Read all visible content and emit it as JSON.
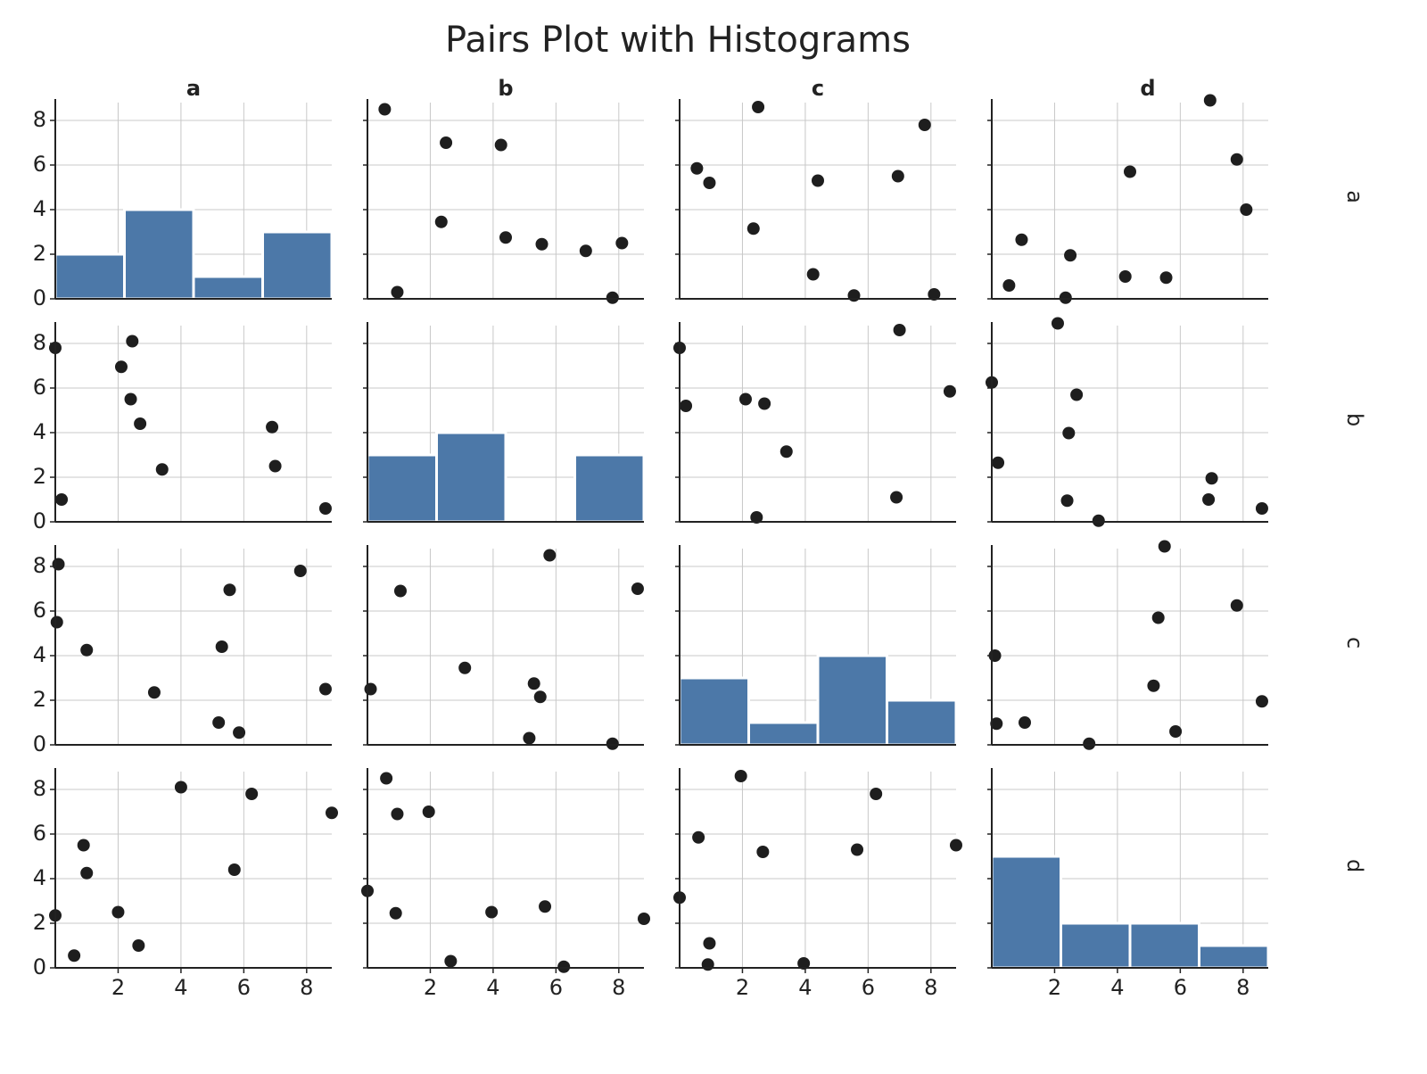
{
  "chart_data": {
    "type": "scatter",
    "title": "Pairs Plot with Histograms",
    "variables": [
      "a",
      "b",
      "c",
      "d"
    ],
    "axis_range": [
      0,
      8.8
    ],
    "ticks": [
      2,
      4,
      6,
      8
    ],
    "ticks_y": [
      0,
      2,
      4,
      6,
      8
    ],
    "grid": true,
    "scatter": {
      "0_1": [
        [
          0.55,
          8.5
        ],
        [
          0.95,
          0.3
        ],
        [
          2.35,
          3.45
        ],
        [
          2.5,
          7.0
        ],
        [
          4.25,
          6.9
        ],
        [
          4.4,
          2.75
        ],
        [
          5.55,
          2.45
        ],
        [
          6.95,
          2.15
        ],
        [
          7.8,
          0.05
        ],
        [
          8.1,
          2.5
        ]
      ],
      "0_2": [
        [
          0.55,
          5.85
        ],
        [
          0.95,
          5.2
        ],
        [
          2.35,
          3.15
        ],
        [
          2.5,
          8.6
        ],
        [
          4.25,
          1.1
        ],
        [
          4.4,
          5.3
        ],
        [
          5.55,
          0.15
        ],
        [
          6.95,
          5.5
        ],
        [
          7.8,
          7.8
        ],
        [
          8.1,
          0.2
        ]
      ],
      "0_3": [
        [
          0.55,
          0.6
        ],
        [
          0.95,
          2.65
        ],
        [
          2.35,
          0.05
        ],
        [
          2.5,
          1.95
        ],
        [
          4.25,
          1.0
        ],
        [
          4.4,
          5.7
        ],
        [
          5.55,
          0.95
        ],
        [
          6.95,
          8.9
        ],
        [
          7.8,
          6.25
        ],
        [
          8.1,
          4.0
        ]
      ],
      "1_0": [
        [
          0.0,
          7.8
        ],
        [
          0.2,
          1.0
        ],
        [
          2.1,
          6.95
        ],
        [
          2.4,
          5.5
        ],
        [
          2.45,
          8.1
        ],
        [
          2.7,
          4.4
        ],
        [
          3.4,
          2.35
        ],
        [
          6.9,
          4.25
        ],
        [
          7.0,
          2.5
        ],
        [
          8.6,
          0.6
        ]
      ],
      "1_2": [
        [
          0.0,
          7.8
        ],
        [
          0.2,
          5.2
        ],
        [
          2.1,
          5.5
        ],
        [
          2.7,
          5.3
        ],
        [
          3.4,
          3.15
        ],
        [
          2.45,
          0.2
        ],
        [
          6.9,
          1.1
        ],
        [
          7.0,
          8.6
        ],
        [
          8.6,
          5.85
        ]
      ],
      "1_3": [
        [
          0.0,
          6.25
        ],
        [
          0.2,
          2.65
        ],
        [
          2.1,
          8.9
        ],
        [
          2.4,
          0.95
        ],
        [
          2.45,
          3.98
        ],
        [
          2.7,
          5.7
        ],
        [
          3.4,
          0.05
        ],
        [
          6.9,
          1.0
        ],
        [
          7.0,
          1.95
        ],
        [
          8.6,
          0.6
        ]
      ],
      "2_0": [
        [
          0.1,
          8.1
        ],
        [
          0.05,
          5.5
        ],
        [
          1.0,
          4.25
        ],
        [
          3.15,
          2.35
        ],
        [
          5.2,
          1.0
        ],
        [
          5.3,
          4.4
        ],
        [
          5.55,
          6.95
        ],
        [
          5.85,
          0.55
        ],
        [
          7.8,
          7.8
        ],
        [
          8.6,
          2.5
        ]
      ],
      "2_1": [
        [
          0.1,
          2.5
        ],
        [
          1.05,
          6.9
        ],
        [
          3.1,
          3.45
        ],
        [
          5.15,
          0.3
        ],
        [
          5.3,
          2.75
        ],
        [
          5.5,
          2.15
        ],
        [
          5.8,
          8.5
        ],
        [
          7.8,
          0.05
        ],
        [
          8.6,
          7.0
        ]
      ],
      "2_3": [
        [
          0.1,
          4.0
        ],
        [
          0.15,
          0.95
        ],
        [
          1.05,
          1.0
        ],
        [
          3.1,
          0.05
        ],
        [
          5.15,
          2.65
        ],
        [
          5.3,
          5.7
        ],
        [
          5.5,
          8.9
        ],
        [
          5.85,
          0.6
        ],
        [
          7.8,
          6.25
        ],
        [
          8.6,
          1.95
        ]
      ],
      "3_0": [
        [
          0.0,
          2.35
        ],
        [
          0.6,
          0.55
        ],
        [
          0.9,
          5.5
        ],
        [
          1.0,
          4.25
        ],
        [
          2.0,
          2.5
        ],
        [
          2.65,
          1.0
        ],
        [
          4.0,
          8.1
        ],
        [
          5.7,
          4.4
        ],
        [
          6.25,
          7.8
        ],
        [
          8.8,
          6.95
        ]
      ],
      "3_1": [
        [
          0.0,
          3.45
        ],
        [
          0.6,
          8.5
        ],
        [
          0.9,
          2.45
        ],
        [
          0.95,
          6.9
        ],
        [
          1.95,
          7.0
        ],
        [
          2.65,
          0.3
        ],
        [
          3.95,
          2.5
        ],
        [
          5.65,
          2.75
        ],
        [
          6.25,
          0.05
        ],
        [
          8.8,
          2.2
        ]
      ],
      "3_2": [
        [
          0.0,
          3.15
        ],
        [
          0.6,
          5.85
        ],
        [
          0.9,
          0.15
        ],
        [
          0.95,
          1.1
        ],
        [
          1.95,
          8.6
        ],
        [
          2.65,
          5.2
        ],
        [
          3.95,
          0.2
        ],
        [
          5.65,
          5.3
        ],
        [
          6.25,
          7.8
        ],
        [
          8.8,
          5.5
        ]
      ]
    },
    "histograms": {
      "a": [
        {
          "from": 0.0,
          "to": 2.2,
          "count": 2
        },
        {
          "from": 2.2,
          "to": 4.4,
          "count": 4
        },
        {
          "from": 4.4,
          "to": 6.6,
          "count": 1
        },
        {
          "from": 6.6,
          "to": 8.8,
          "count": 3
        }
      ],
      "b": [
        {
          "from": 0.0,
          "to": 2.2,
          "count": 3
        },
        {
          "from": 2.2,
          "to": 4.4,
          "count": 4
        },
        {
          "from": 4.4,
          "to": 6.6,
          "count": 0
        },
        {
          "from": 6.6,
          "to": 8.8,
          "count": 3
        }
      ],
      "c": [
        {
          "from": 0.0,
          "to": 2.2,
          "count": 3
        },
        {
          "from": 2.2,
          "to": 4.4,
          "count": 1
        },
        {
          "from": 4.4,
          "to": 6.6,
          "count": 4
        },
        {
          "from": 6.6,
          "to": 8.8,
          "count": 2
        }
      ],
      "d": [
        {
          "from": 0.0,
          "to": 2.2,
          "count": 5
        },
        {
          "from": 2.2,
          "to": 4.4,
          "count": 2
        },
        {
          "from": 4.4,
          "to": 6.6,
          "count": 2
        },
        {
          "from": 6.6,
          "to": 8.8,
          "count": 1
        }
      ]
    },
    "colors": {
      "point": "#1e1e1e",
      "bar": "#4c78a8",
      "grid": "#c8c8c8"
    }
  }
}
